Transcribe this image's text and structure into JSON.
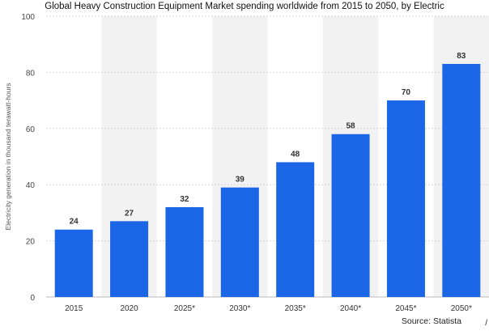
{
  "chart_data": {
    "type": "bar",
    "title": "Global Heavy Construction Equipment Market spending worldwide from 2015 to 2050, by Electric",
    "xlabel": "",
    "ylabel": "Electricity generation in thousand terawatt-hours",
    "categories": [
      "2015",
      "2020",
      "2025*",
      "2030*",
      "2035*",
      "2040*",
      "2045*",
      "2050*"
    ],
    "values": [
      24,
      27,
      32,
      39,
      48,
      58,
      70,
      83
    ],
    "value_labels": [
      "24",
      "27",
      "32",
      "39",
      "48",
      "58",
      "70",
      "83"
    ],
    "ylim": [
      0,
      100
    ],
    "yticks": [
      0,
      20,
      40,
      60,
      80,
      100
    ],
    "ytick_labels": [
      "0",
      "20",
      "40",
      "60",
      "80",
      "100"
    ],
    "grid": true,
    "alternating_band_color": "#f2f2f2",
    "bar_color": "#1a66e6",
    "legend": "none"
  },
  "source": "Source: Statista",
  "corner_mark": "/"
}
